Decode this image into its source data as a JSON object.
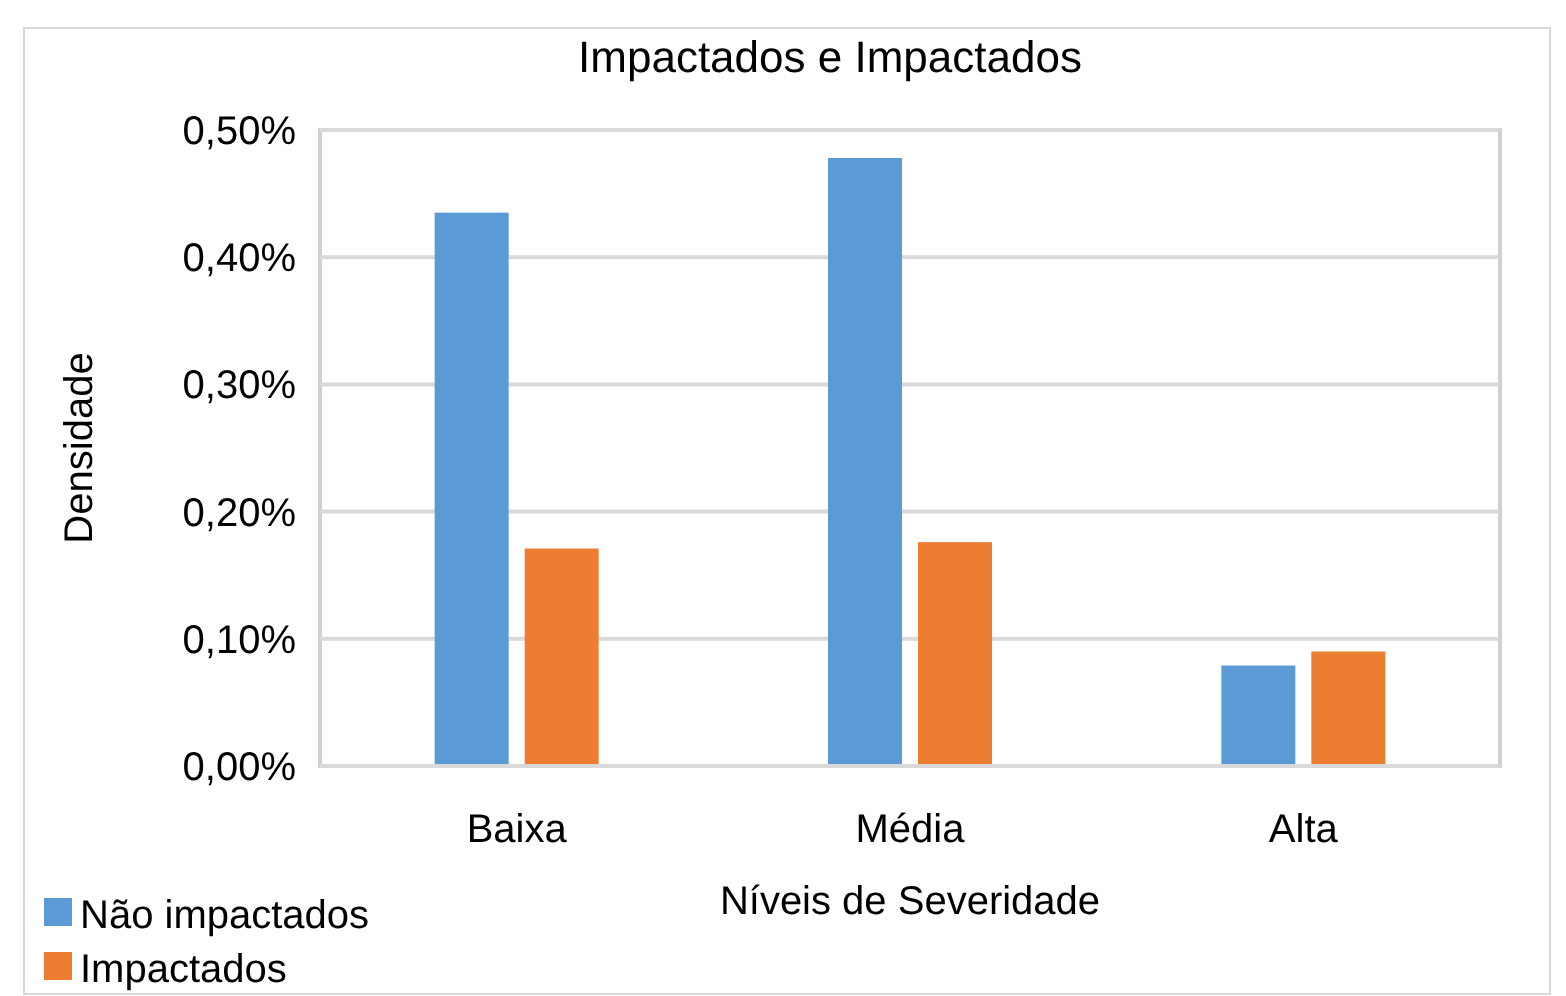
{
  "chart_data": {
    "type": "bar",
    "title": "Impactados e Impactados",
    "xlabel": "Níveis de Severidade",
    "ylabel": "Densidade",
    "categories": [
      "Baixa",
      "Média",
      "Alta"
    ],
    "series": [
      {
        "name": "Não impactados",
        "color": "#5b9bd5",
        "values": [
          0.435,
          0.478,
          0.079
        ]
      },
      {
        "name": "Impactados",
        "color": "#ed7d31",
        "values": [
          0.171,
          0.176,
          0.09
        ]
      }
    ],
    "ylim": [
      0,
      0.5
    ],
    "yticks": [
      {
        "value": 0,
        "label": "0,00%"
      },
      {
        "value": 0.1,
        "label": "0,10%"
      },
      {
        "value": 0.2,
        "label": "0,20%"
      },
      {
        "value": 0.3,
        "label": "0,30%"
      },
      {
        "value": 0.4,
        "label": "0,40%"
      },
      {
        "value": 0.5,
        "label": "0,50%"
      }
    ],
    "grid": "y",
    "legend": "bottom left"
  }
}
